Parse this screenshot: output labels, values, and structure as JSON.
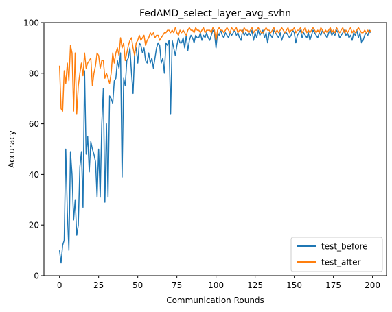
{
  "chart_data": {
    "type": "line",
    "title": "FedAMD_select_layer_avg_svhn",
    "xlabel": "Communication Rounds",
    "ylabel": "Accuracy",
    "xlim": [
      -9.95,
      208.95
    ],
    "ylim": [
      0,
      100
    ],
    "xticks": [
      0,
      25,
      50,
      75,
      100,
      125,
      150,
      175,
      200
    ],
    "yticks": [
      0,
      20,
      40,
      60,
      80,
      100
    ],
    "grid": false,
    "legend_position": "lower right",
    "colors": {
      "test_before": "#1f77b4",
      "test_after": "#ff7f0e"
    },
    "series": [
      {
        "name": "test_before",
        "x_start": 0,
        "x_step": 1,
        "values": [
          10,
          5,
          12,
          14,
          50,
          25,
          10,
          49,
          40,
          22,
          30,
          16,
          20,
          43,
          49,
          27,
          81,
          48,
          55,
          41,
          53,
          50,
          48,
          45,
          31,
          50,
          31,
          60,
          74,
          29,
          60,
          31,
          71,
          70,
          68,
          77,
          78,
          85,
          82,
          88,
          39,
          78,
          75,
          85,
          86,
          90,
          80,
          72,
          88,
          90,
          84,
          92,
          91,
          88,
          90,
          85,
          84,
          88,
          84,
          86,
          82,
          86,
          90,
          92,
          91,
          84,
          86,
          80,
          92,
          91,
          93,
          64,
          93,
          90,
          87,
          91,
          94,
          92,
          92,
          94,
          90,
          95,
          89,
          93,
          95,
          94,
          92,
          95,
          94,
          94,
          96,
          93,
          95,
          94,
          96,
          94,
          93,
          95,
          97,
          96,
          90,
          96,
          95,
          97,
          95,
          94,
          96,
          95,
          94,
          96,
          95,
          96,
          97,
          95,
          96,
          94,
          93,
          97,
          95,
          96,
          95,
          96,
          95,
          97,
          93,
          96,
          94,
          97,
          95,
          96,
          97,
          94,
          96,
          92,
          96,
          95,
          94,
          97,
          96,
          95,
          94,
          96,
          93,
          95,
          96,
          96,
          95,
          94,
          95,
          97,
          96,
          92,
          95,
          96,
          97,
          94,
          96,
          95,
          94,
          96,
          93,
          95,
          97,
          96,
          95,
          94,
          96,
          95,
          97,
          96,
          95,
          94,
          96,
          97,
          95,
          96,
          95,
          97,
          96,
          94,
          95,
          96,
          97,
          95,
          96,
          94,
          95,
          93,
          96,
          95,
          97,
          94,
          96,
          92,
          93,
          95,
          96,
          95,
          97,
          96
        ]
      },
      {
        "name": "test_after",
        "x_start": 0,
        "x_step": 1,
        "values": [
          83,
          66,
          65,
          81,
          76,
          84,
          77,
          91,
          88,
          65,
          88,
          64,
          75,
          80,
          84,
          79,
          88,
          82,
          84,
          85,
          86,
          75,
          80,
          83,
          88,
          87,
          82,
          85,
          85,
          78,
          80,
          78,
          76,
          80,
          88,
          84,
          88,
          90,
          87,
          94,
          90,
          92,
          85,
          88,
          91,
          93,
          94,
          90,
          87,
          92,
          93,
          95,
          93,
          94,
          95,
          91,
          93,
          94,
          96,
          95,
          96,
          94,
          95,
          95,
          93,
          94,
          95,
          96,
          96,
          97,
          97,
          96,
          97,
          96,
          98,
          96,
          95,
          97,
          96,
          97,
          96,
          95,
          97,
          98,
          97,
          97,
          96,
          98,
          97,
          97,
          96,
          97,
          98,
          96,
          97,
          97,
          97,
          96,
          98,
          97,
          93,
          97,
          98,
          97,
          97,
          96,
          97,
          98,
          97,
          96,
          98,
          97,
          97,
          98,
          96,
          97,
          97,
          96,
          98,
          97,
          97,
          96,
          97,
          98,
          96,
          97,
          97,
          98,
          97,
          96,
          96,
          97,
          98,
          97,
          97,
          96,
          97,
          98,
          96,
          97,
          96,
          97,
          98,
          97,
          96,
          97,
          98,
          96,
          97,
          97,
          98,
          96,
          97,
          97,
          98,
          96,
          97,
          98,
          96,
          97,
          96,
          97,
          98,
          97,
          96,
          97,
          96,
          98,
          97,
          96,
          97,
          96,
          97,
          98,
          96,
          97,
          96,
          98,
          97,
          96,
          97,
          98,
          96,
          97,
          96,
          97,
          98,
          96,
          97,
          96,
          97,
          98,
          97,
          96,
          96,
          97,
          96,
          97,
          96,
          97
        ]
      }
    ]
  }
}
